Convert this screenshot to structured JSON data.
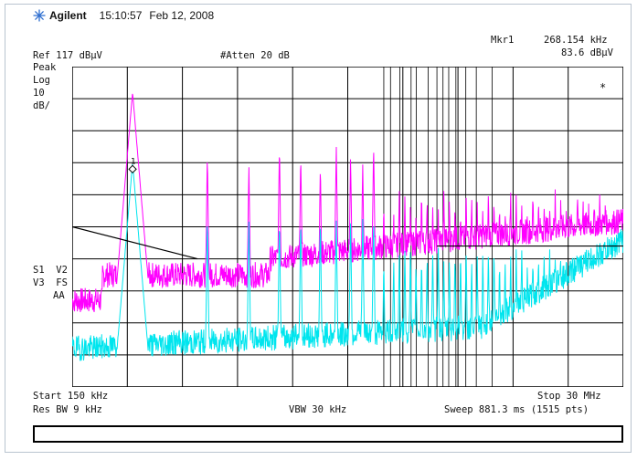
{
  "header": {
    "brand": "Agilent",
    "time": "15:10:57",
    "date": "Feb 12, 2008"
  },
  "marker": {
    "label": "Mkr1",
    "frequency": "268.154 kHz",
    "amplitude": "83.6 dBµV",
    "number": "1"
  },
  "settings": {
    "ref_level": "Ref 117 dBµV",
    "attenuation": "#Atten 20 dB",
    "detector": "Peak",
    "scale_type": "Log",
    "scale_value": "10",
    "scale_unit": "dB/",
    "trace_flags_1": "S1  V2",
    "trace_flags_2": "V3  FS",
    "trace_flags_3": "AA",
    "star": "*"
  },
  "footer": {
    "start": "Start 150 kHz",
    "stop": "Stop 30 MHz",
    "res_bw": "Res BW 9 kHz",
    "vbw": "VBW 30 kHz",
    "sweep": "Sweep 881.3 ms (1515 pts)"
  },
  "colors": {
    "trace_peak": "#ff00ff",
    "trace_avg": "#00e5ee",
    "grid": "#000000",
    "limit_line": "#000000",
    "brand_icon": "#2f6fd0"
  },
  "chart_data": {
    "type": "line",
    "x_scale": "log",
    "xlim": [
      "150 kHz",
      "30 MHz"
    ],
    "ylim_db_below_ref": [
      -100,
      0
    ],
    "series": [
      {
        "color": "magenta",
        "peaks_MHz": [
          0.268,
          0.55,
          0.82,
          1.1,
          1.35,
          1.63,
          1.9,
          2.18,
          2.45,
          2.72,
          3.0
        ]
      },
      {
        "color": "cyan",
        "peaks_MHz": [
          0.268,
          0.55,
          0.82,
          1.1,
          1.35,
          1.63,
          1.9,
          2.18,
          2.45,
          2.72,
          3.0
        ]
      }
    ]
  }
}
